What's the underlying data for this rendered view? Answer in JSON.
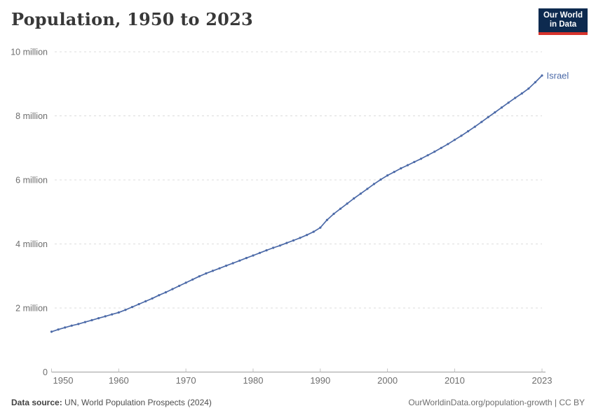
{
  "header": {
    "title": "Population, 1950 to 2023"
  },
  "logo": {
    "line1": "Our World",
    "line2": "in Data",
    "bg_color": "#0d2a4f",
    "accent_color": "#d7332c",
    "text_color": "#ffffff"
  },
  "chart_data": {
    "type": "line",
    "title": "Population, 1950 to 2023",
    "entity_label": "Israel",
    "unit": "million people",
    "grid": "dashed-horizontal",
    "legend": "end-of-line-label",
    "xlim": [
      1950,
      2023
    ],
    "ylim": [
      0,
      10
    ],
    "xticks": [
      1950,
      1960,
      1970,
      1980,
      1990,
      2000,
      2010,
      2023
    ],
    "yticks": [
      {
        "value": 0,
        "label": "0"
      },
      {
        "value": 2,
        "label": "2 million"
      },
      {
        "value": 4,
        "label": "4 million"
      },
      {
        "value": 6,
        "label": "6 million"
      },
      {
        "value": 8,
        "label": "8 million"
      },
      {
        "value": 10,
        "label": "10 million"
      }
    ],
    "x": [
      1950,
      1951,
      1952,
      1953,
      1954,
      1955,
      1956,
      1957,
      1958,
      1959,
      1960,
      1961,
      1962,
      1963,
      1964,
      1965,
      1966,
      1967,
      1968,
      1969,
      1970,
      1971,
      1972,
      1973,
      1974,
      1975,
      1976,
      1977,
      1978,
      1979,
      1980,
      1981,
      1982,
      1983,
      1984,
      1985,
      1986,
      1987,
      1988,
      1989,
      1990,
      1991,
      1992,
      1993,
      1994,
      1995,
      1996,
      1997,
      1998,
      1999,
      2000,
      2001,
      2002,
      2003,
      2004,
      2005,
      2006,
      2007,
      2008,
      2009,
      2010,
      2011,
      2012,
      2013,
      2014,
      2015,
      2016,
      2017,
      2018,
      2019,
      2020,
      2021,
      2022,
      2023
    ],
    "series": [
      {
        "name": "Israel",
        "color": "#4c6aa8",
        "values": [
          1.26,
          1.33,
          1.39,
          1.45,
          1.5,
          1.56,
          1.62,
          1.68,
          1.74,
          1.8,
          1.86,
          1.94,
          2.03,
          2.12,
          2.21,
          2.3,
          2.4,
          2.49,
          2.59,
          2.69,
          2.79,
          2.89,
          2.99,
          3.08,
          3.16,
          3.24,
          3.32,
          3.4,
          3.48,
          3.56,
          3.64,
          3.72,
          3.8,
          3.88,
          3.95,
          4.03,
          4.11,
          4.19,
          4.28,
          4.38,
          4.51,
          4.75,
          4.94,
          5.1,
          5.26,
          5.42,
          5.57,
          5.72,
          5.87,
          6.01,
          6.14,
          6.25,
          6.36,
          6.46,
          6.56,
          6.66,
          6.77,
          6.88,
          7.0,
          7.12,
          7.25,
          7.38,
          7.52,
          7.66,
          7.81,
          7.96,
          8.11,
          8.26,
          8.41,
          8.56,
          8.7,
          8.85,
          9.05,
          9.26
        ]
      }
    ],
    "axis_color": "#9e9e9e",
    "gridline_color": "#dcdcdc",
    "tick_label_color": "#6e6e6e"
  },
  "footer": {
    "source_label": "Data source:",
    "source_text": " UN, World Population Prospects (2024)",
    "right_text": "OurWorldinData.org/population-growth | CC BY"
  }
}
